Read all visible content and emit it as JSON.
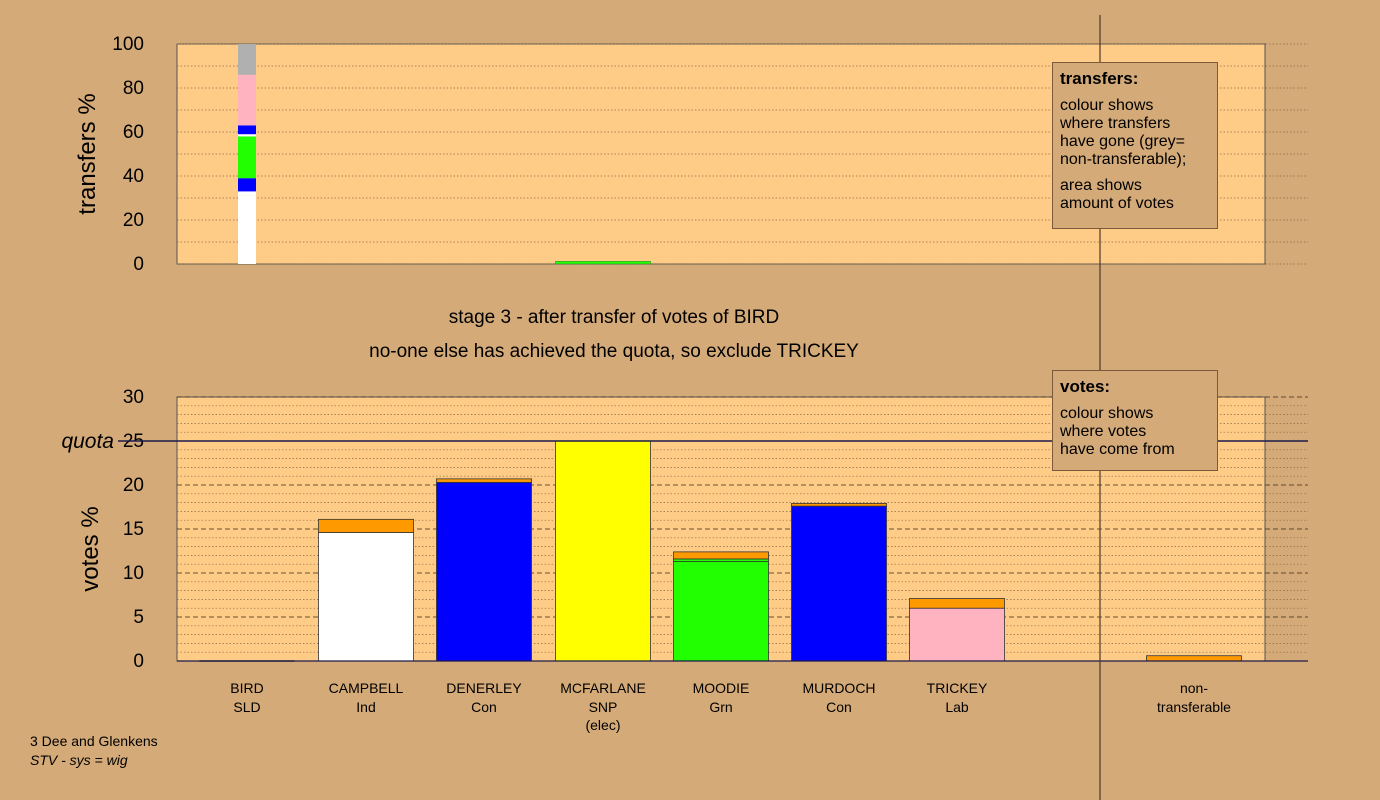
{
  "chart_data": [
    {
      "type": "bar",
      "stacked": true,
      "ylabel": "transfers %",
      "ylim": [
        0,
        100
      ],
      "yticks": [
        0,
        20,
        40,
        60,
        80,
        100
      ],
      "bars": [
        {
          "candidate": "BIRD",
          "segments": [
            {
              "to": "CAMPBELL",
              "value": 31,
              "color": "#ffffff"
            },
            {
              "to": "gap",
              "value": 2,
              "color": "#ffffff"
            },
            {
              "to": "DENERLEY",
              "value": 6,
              "color": "#0000ff"
            },
            {
              "to": "MOODIE",
              "value": 19,
              "color": "#22ff00"
            },
            {
              "to": "gap",
              "value": 1,
              "color": "#ffffff"
            },
            {
              "to": "MURDOCH",
              "value": 4,
              "color": "#0000ff"
            },
            {
              "to": "TRICKEY",
              "value": 23,
              "color": "#ffb3c1"
            },
            {
              "to": "non-transferable",
              "value": 14,
              "color": "#b0b0b0"
            }
          ]
        },
        {
          "candidate": "MCFARLANE",
          "segments": [
            {
              "to": "MOODIE",
              "value": 1.2,
              "color": "#22ff00"
            }
          ]
        }
      ]
    },
    {
      "type": "bar",
      "stacked": true,
      "ylabel": "votes %",
      "ylim": [
        0,
        30
      ],
      "yticks": [
        0,
        5,
        10,
        15,
        20,
        25,
        30
      ],
      "quota": 25,
      "quota_label": "quota",
      "bars": [
        {
          "candidate": "BIRD",
          "segments": []
        },
        {
          "candidate": "CAMPBELL",
          "segments": [
            {
              "from": "first preferences",
              "value": 14.6,
              "color": "#ffffff"
            },
            {
              "from": "BIRD",
              "value": 1.5,
              "color": "#ff9900"
            }
          ]
        },
        {
          "candidate": "DENERLEY",
          "segments": [
            {
              "from": "first preferences",
              "value": 20.3,
              "color": "#0000ff"
            },
            {
              "from": "BIRD",
              "value": 0.4,
              "color": "#ff9900"
            }
          ]
        },
        {
          "candidate": "MCFARLANE",
          "segments": [
            {
              "from": "first preferences",
              "value": 25,
              "color": "#ffff00"
            }
          ]
        },
        {
          "candidate": "MOODIE",
          "segments": [
            {
              "from": "first preferences",
              "value": 11.3,
              "color": "#22ff00"
            },
            {
              "from": "MCFARLANE",
              "value": 0.3,
              "color": "#22ff00"
            },
            {
              "from": "BIRD",
              "value": 0.8,
              "color": "#ff9900"
            }
          ]
        },
        {
          "candidate": "MURDOCH",
          "segments": [
            {
              "from": "first preferences",
              "value": 17.6,
              "color": "#0000ff"
            },
            {
              "from": "BIRD",
              "value": 0.3,
              "color": "#ff9900"
            }
          ]
        },
        {
          "candidate": "TRICKEY",
          "segments": [
            {
              "from": "first preferences",
              "value": 6.0,
              "color": "#ffb3c1"
            },
            {
              "from": "BIRD",
              "value": 1.1,
              "color": "#ff9900"
            }
          ]
        },
        {
          "candidate": "non-transferable",
          "segments": [
            {
              "from": "BIRD",
              "value": 0.6,
              "color": "#ff9900"
            }
          ]
        }
      ]
    }
  ],
  "candidates": [
    {
      "name": "BIRD",
      "party": "SLD",
      "note": ""
    },
    {
      "name": "CAMPBELL",
      "party": "Ind",
      "note": ""
    },
    {
      "name": "DENERLEY",
      "party": "Con",
      "note": ""
    },
    {
      "name": "MCFARLANE",
      "party": "SNP",
      "note": "(elec)"
    },
    {
      "name": "MOODIE",
      "party": "Grn",
      "note": ""
    },
    {
      "name": "MURDOCH",
      "party": "Con",
      "note": ""
    },
    {
      "name": "TRICKEY",
      "party": "Lab",
      "note": ""
    }
  ],
  "nontransferable_label": [
    "non-",
    "transferable"
  ],
  "stage_text": [
    "stage 3 - after transfer of votes of BIRD",
    "no-one else has achieved the quota, so exclude TRICKEY"
  ],
  "legend_transfers": {
    "title": "transfers:",
    "lines": [
      "colour shows",
      "where transfers",
      "have gone (grey=",
      "non-transferable);"
    ],
    "lines2": [
      "area shows",
      "amount of votes"
    ]
  },
  "legend_votes": {
    "title": "votes:",
    "lines": [
      "colour shows",
      "where votes",
      "have come from"
    ]
  },
  "footer": {
    "line1": "3 Dee and Glenkens",
    "line2": "STV - sys = wig"
  },
  "colors": {
    "page": "#d4aa78",
    "plot": "#ffcc88",
    "axis": "#1a1a4a"
  }
}
